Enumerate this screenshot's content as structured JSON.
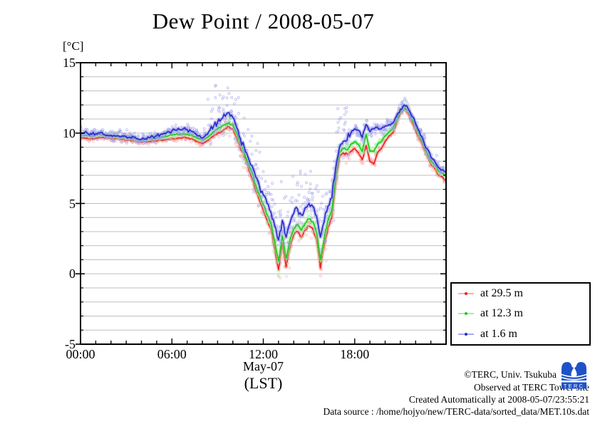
{
  "title": "Dew Point / 2008-05-07",
  "axis": {
    "y_unit_label": "[°C]",
    "x_axis_sub_label1": "May-07",
    "x_axis_sub_label2": "(LST)"
  },
  "footer": {
    "copyright": "©TERC, Univ. Tsukuba",
    "observed": "Observed at TERC Tower site",
    "created": "Created Automatically at 2008-05-07/23:55:21",
    "data_source": "Data source : /home/hojyo/new/TERC-data/sorted_data/MET.10s.dat",
    "logo_text": "TERC",
    "logo_color": "#1f52c8"
  },
  "chart_data": {
    "type": "line",
    "title": "Dew Point / 2008-05-07",
    "ylabel": "[°C]",
    "xlabel": "May-07 (LST)",
    "xlim": [
      0,
      24
    ],
    "ylim": [
      -5,
      15
    ],
    "x_major_ticks": [
      0,
      6,
      12,
      18
    ],
    "x_major_labels": [
      "00:00",
      "06:00",
      "12:00",
      "18:00"
    ],
    "x_minor_step_hours": 1,
    "y_major_ticks": [
      -5,
      0,
      5,
      10,
      15
    ],
    "y_minor_step": 1,
    "grid": "horizontal-every-1-degree",
    "legend_position": "outside-right-bottom",
    "x_hours": {
      "start": 0,
      "step": 0.25,
      "count": 97
    },
    "series": [
      {
        "name": "at 29.5 m",
        "color": "#ee2222",
        "halo": "#ff9e9e",
        "values": [
          9.7,
          9.65,
          9.6,
          9.6,
          9.65,
          9.7,
          9.7,
          9.65,
          9.6,
          9.6,
          9.6,
          9.55,
          9.5,
          9.5,
          9.45,
          9.4,
          9.35,
          9.4,
          9.4,
          9.45,
          9.45,
          9.5,
          9.5,
          9.55,
          9.6,
          9.6,
          9.65,
          9.7,
          9.65,
          9.6,
          9.5,
          9.35,
          9.25,
          9.4,
          9.6,
          9.8,
          10.0,
          10.1,
          10.3,
          10.45,
          10.3,
          9.7,
          8.9,
          8.3,
          7.6,
          6.8,
          5.9,
          5.2,
          4.5,
          3.8,
          3.2,
          1.8,
          0.3,
          2.2,
          0.5,
          1.9,
          2.8,
          3.0,
          2.6,
          3.1,
          3.4,
          3.2,
          2.4,
          0.4,
          2.0,
          3.3,
          4.0,
          6.5,
          8.3,
          8.6,
          8.5,
          8.7,
          8.9,
          8.6,
          8.1,
          9.1,
          8.0,
          7.8,
          8.6,
          8.9,
          9.4,
          9.8,
          10.0,
          10.7,
          11.4,
          11.7,
          11.4,
          10.8,
          10.2,
          9.6,
          9.0,
          8.4,
          7.8,
          7.5,
          7.0,
          6.9,
          6.6
        ]
      },
      {
        "name": "at 12.3 m",
        "color": "#22c822",
        "halo": "#90ee90",
        "values": [
          9.9,
          9.85,
          9.85,
          9.8,
          9.85,
          9.9,
          9.85,
          9.8,
          9.8,
          9.75,
          9.75,
          9.7,
          9.7,
          9.65,
          9.6,
          9.55,
          9.5,
          9.55,
          9.6,
          9.6,
          9.65,
          9.7,
          9.75,
          9.8,
          9.85,
          9.9,
          9.9,
          9.95,
          9.9,
          9.85,
          9.75,
          9.6,
          9.5,
          9.65,
          9.85,
          10.1,
          10.3,
          10.45,
          10.6,
          10.75,
          10.6,
          10.0,
          9.2,
          8.6,
          7.9,
          7.2,
          6.3,
          5.6,
          4.9,
          4.2,
          3.6,
          2.3,
          0.9,
          2.7,
          1.1,
          2.4,
          3.2,
          3.5,
          3.1,
          3.6,
          3.9,
          3.7,
          2.9,
          1.0,
          2.5,
          3.8,
          4.5,
          6.9,
          8.6,
          8.9,
          8.8,
          9.2,
          9.4,
          9.2,
          8.7,
          9.9,
          8.7,
          8.7,
          9.2,
          9.4,
          9.8,
          10.1,
          10.3,
          10.9,
          11.55,
          11.85,
          11.6,
          11.0,
          10.45,
          9.85,
          9.25,
          8.65,
          8.05,
          7.75,
          7.3,
          7.15,
          6.95
        ]
      },
      {
        "name": "at 1.6 m",
        "color": "#2a2ad0",
        "halo": "#9a9aea",
        "values": [
          10.0,
          10.0,
          9.95,
          9.9,
          9.95,
          10.0,
          9.9,
          9.85,
          9.85,
          9.8,
          9.8,
          9.8,
          9.75,
          9.7,
          9.7,
          9.6,
          9.55,
          9.6,
          9.7,
          9.75,
          9.8,
          9.9,
          10.0,
          10.1,
          10.15,
          10.2,
          10.25,
          10.3,
          10.25,
          10.15,
          10.0,
          9.8,
          9.65,
          9.9,
          10.2,
          10.5,
          10.8,
          11.0,
          11.2,
          11.45,
          11.1,
          10.4,
          9.6,
          9.0,
          8.3,
          7.7,
          6.9,
          6.2,
          5.6,
          5.0,
          4.4,
          3.4,
          2.4,
          3.8,
          2.6,
          3.6,
          4.3,
          4.6,
          4.2,
          4.7,
          5.0,
          4.8,
          4.1,
          2.6,
          3.7,
          4.8,
          5.4,
          7.5,
          9.0,
          9.4,
          9.5,
          10.0,
          10.3,
          10.2,
          9.7,
          10.6,
          10.1,
          10.3,
          10.4,
          10.3,
          10.5,
          10.6,
          10.7,
          11.2,
          11.7,
          12.0,
          11.75,
          11.2,
          10.65,
          10.1,
          9.5,
          8.9,
          8.3,
          8.0,
          7.55,
          7.4,
          7.2
        ]
      }
    ],
    "scatter": {
      "style": "open-circles-around-lines",
      "spread_base": [
        0.16,
        0.16,
        0.3
      ],
      "spread_active": [
        0.45,
        0.45,
        1.05
      ],
      "active_window_hours": [
        [
          9.3,
          17.6
        ],
        [
          9.3,
          17.6
        ],
        [
          8.4,
          17.6
        ]
      ],
      "density_per_step": [
        6,
        5,
        9
      ]
    },
    "frame_color": "#000000",
    "grid_color": "#bfbfbf"
  }
}
